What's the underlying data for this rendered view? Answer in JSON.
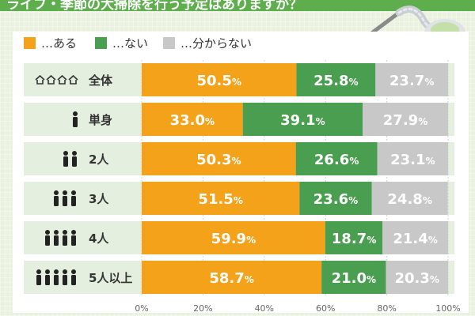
{
  "title": "ライフ・季節の大掃除を行う予定はありますか？",
  "legend": [
    {
      "label": "…ある",
      "color": "#f5a21b"
    },
    {
      "label": "…ない",
      "color": "#4a9e4f"
    },
    {
      "label": "…分からない",
      "color": "#c8c8c8"
    }
  ],
  "chart_data": {
    "type": "bar",
    "orientation": "horizontal",
    "stacked": true,
    "categories": [
      "全体",
      "単身",
      "2人",
      "3人",
      "4人",
      "5人以上"
    ],
    "series": [
      {
        "name": "…ある",
        "values": [
          50.5,
          33.0,
          50.3,
          51.5,
          59.9,
          58.7
        ]
      },
      {
        "name": "…ない",
        "values": [
          25.8,
          39.1,
          26.6,
          23.6,
          18.7,
          21.0
        ]
      },
      {
        "name": "…分からない",
        "values": [
          23.7,
          27.9,
          23.1,
          24.8,
          21.4,
          20.3
        ]
      }
    ],
    "value_unit": "%",
    "xlim": [
      0,
      100
    ],
    "xticks": [
      "0%",
      "20%",
      "40%",
      "60%",
      "80%",
      "100%"
    ],
    "grid": true,
    "legend_position": "top-left",
    "colors": [
      "#f5a21b",
      "#4a9e4f",
      "#c8c8c8"
    ]
  },
  "rows": [
    {
      "label": "全体",
      "icon": "houses-icon"
    },
    {
      "label": "単身",
      "icon": "person-icon",
      "count": 1
    },
    {
      "label": "2人",
      "icon": "person-icon",
      "count": 2
    },
    {
      "label": "3人",
      "icon": "person-icon",
      "count": 3
    },
    {
      "label": "4人",
      "icon": "person-icon",
      "count": 4
    },
    {
      "label": "5人以上",
      "icon": "person-icon",
      "count": 5
    }
  ]
}
